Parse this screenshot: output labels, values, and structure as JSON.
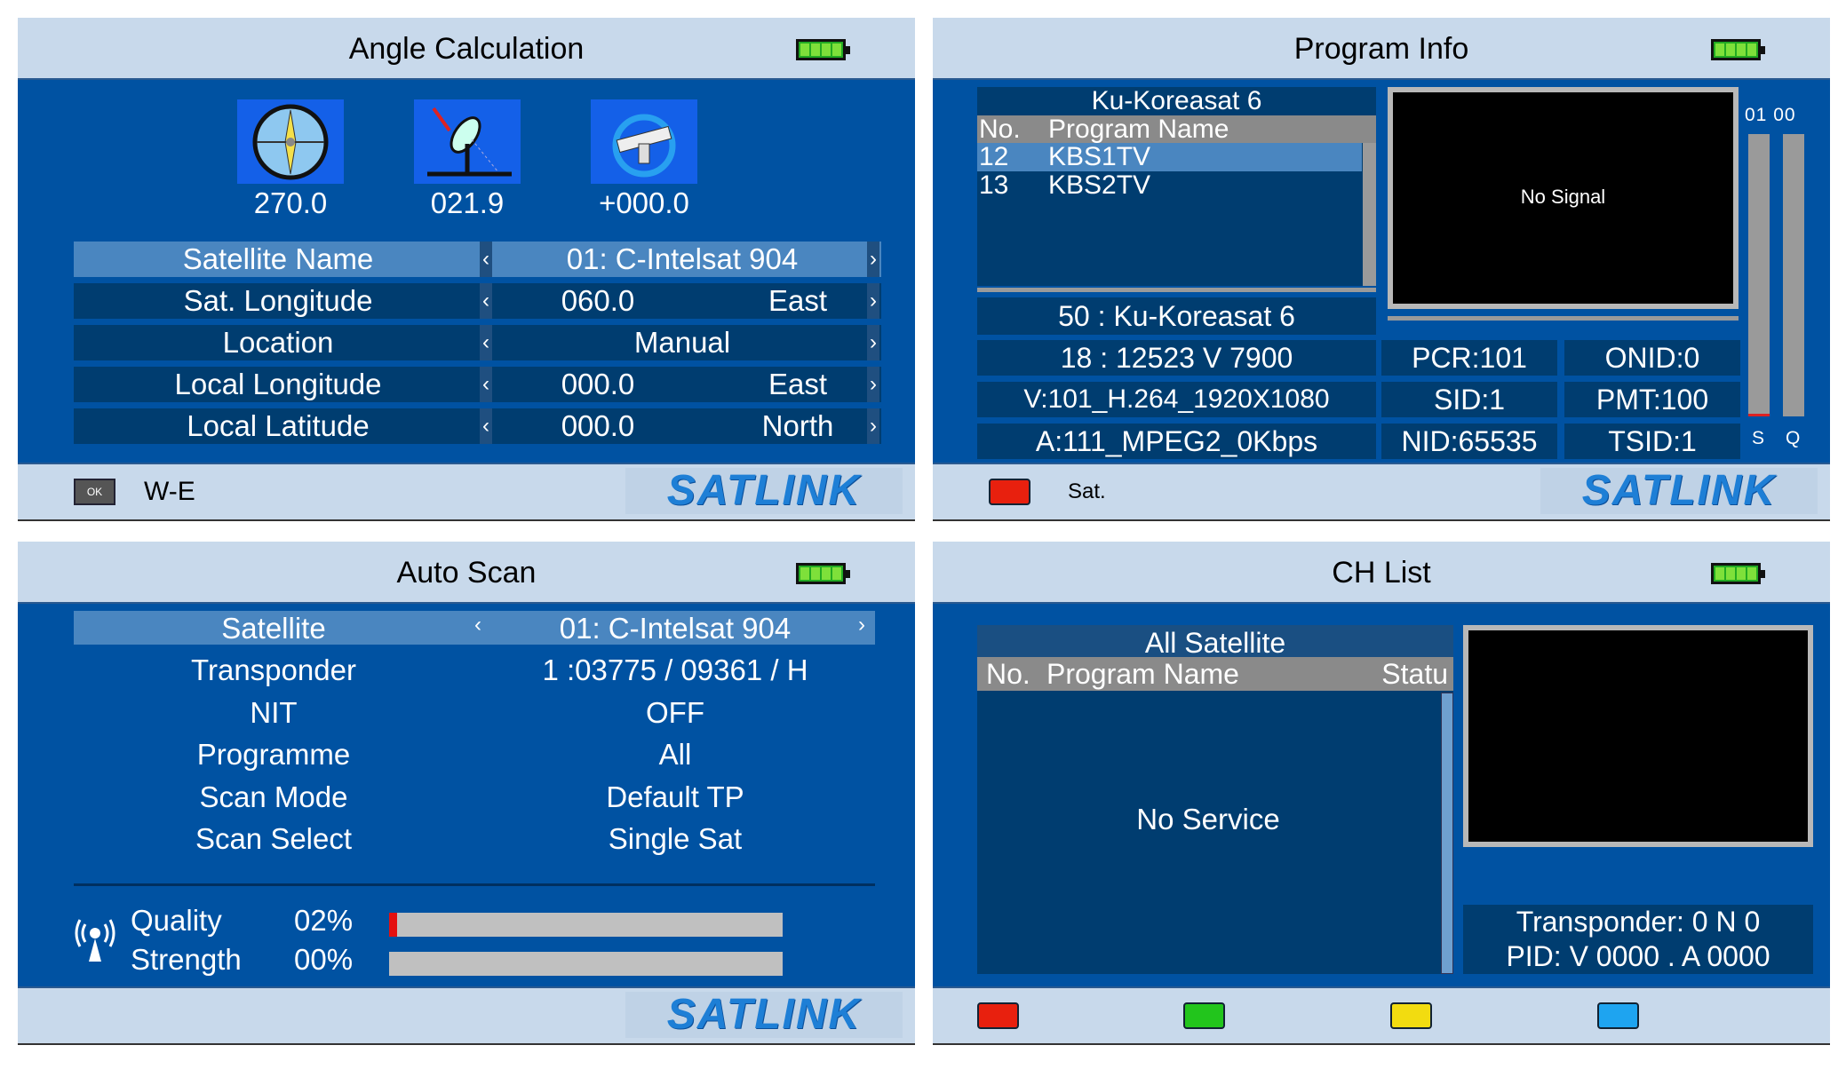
{
  "logo": "SATLINK",
  "angle": {
    "title": "Angle Calculation",
    "icons": [
      {
        "icon": "compass-icon",
        "value": "270.0"
      },
      {
        "icon": "dish-elevation-icon",
        "value": "021.9"
      },
      {
        "icon": "lnb-polarity-icon",
        "value": "+000.0"
      }
    ],
    "rows": [
      {
        "label": "Satellite Name",
        "value": "01: C-Intelsat 904",
        "unit": ""
      },
      {
        "label": "Sat. Longitude",
        "value": "060.0",
        "unit": "East"
      },
      {
        "label": "Location",
        "value": "Manual",
        "unit": ""
      },
      {
        "label": "Local Longitude",
        "value": "000.0",
        "unit": "East"
      },
      {
        "label": "Local Latitude",
        "value": "000.0",
        "unit": "North"
      }
    ],
    "arrow_left": "‹",
    "arrow_right": "›",
    "footer": {
      "ok_label": "OK",
      "hint": "W-E"
    }
  },
  "program": {
    "title": "Program Info",
    "list_title": "Ku-Koreasat 6",
    "col_no": "No.",
    "col_name": "Program Name",
    "items": [
      {
        "no": "12",
        "name": "KBS1TV"
      },
      {
        "no": "13",
        "name": "KBS2TV"
      }
    ],
    "video_text": "No Signal",
    "sat_line": "50 : Ku-Koreasat 6",
    "info": [
      [
        "18 : 12523 V 7900",
        "PCR:101",
        "ONID:0"
      ],
      [
        "V:101_H.264_1920X1080",
        "SID:1",
        "PMT:100"
      ],
      [
        "A:111_MPEG2_0Kbps",
        "NID:65535",
        "TSID:1"
      ]
    ],
    "meter_values": "01 00",
    "meter_s": "S",
    "meter_q": "Q",
    "signal_strength_pct": 1,
    "signal_quality_pct": 0,
    "footer": {
      "hint": "Sat.",
      "red": "#e8200e"
    }
  },
  "scan": {
    "title": "Auto Scan",
    "rows": [
      {
        "label": "Satellite",
        "value": "01: C-Intelsat 904"
      },
      {
        "label": "Transponder",
        "value": "1 :03775 / 09361 / H"
      },
      {
        "label": "NIT",
        "value": "OFF"
      },
      {
        "label": "Programme",
        "value": "All"
      },
      {
        "label": "Scan Mode",
        "value": "Default TP"
      },
      {
        "label": "Scan Select",
        "value": "Single Sat"
      }
    ],
    "quality_label": "Quality",
    "quality_value": "02%",
    "quality_pct": 2,
    "strength_label": "Strength",
    "strength_value": "00%",
    "strength_pct": 0
  },
  "chlist": {
    "title": "CH List",
    "list_title": "All Satellite",
    "col_no": "No.",
    "col_name": "Program Name",
    "col_status": "Statu",
    "empty": "No Service",
    "transponder": "Transponder: 0 N 0",
    "pid": "PID: V 0000 . A 0000",
    "buttons": {
      "red": "#e8200e",
      "green": "#22c51c",
      "yellow": "#f2dc10",
      "blue": "#1ea4f0"
    }
  }
}
